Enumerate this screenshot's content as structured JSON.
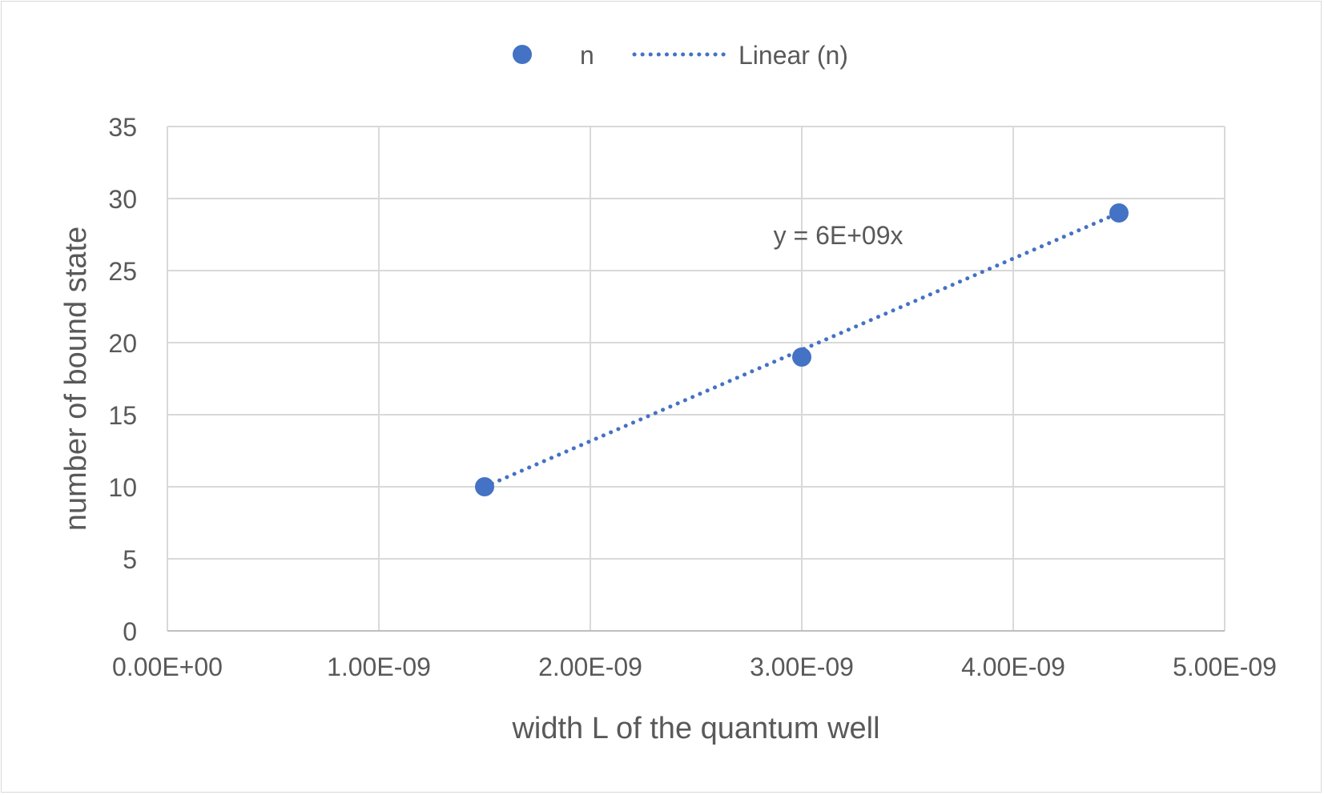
{
  "chart_data": {
    "type": "scatter",
    "xlabel": "width L of the quantum well",
    "ylabel": "number of bound state",
    "xlim": [
      0,
      5e-09
    ],
    "ylim": [
      0,
      35
    ],
    "x_ticks": [
      0,
      1e-09,
      2e-09,
      3e-09,
      4e-09,
      5e-09
    ],
    "x_tick_labels": [
      "0.00E+00",
      "1.00E-09",
      "2.00E-09",
      "3.00E-09",
      "4.00E-09",
      "5.00E-09"
    ],
    "y_ticks": [
      0,
      5,
      10,
      15,
      20,
      25,
      30,
      35
    ],
    "y_tick_labels": [
      "0",
      "5",
      "10",
      "15",
      "20",
      "25",
      "30",
      "35"
    ],
    "grid": true,
    "legend_position": "top",
    "series": [
      {
        "name": "n",
        "x": [
          1.5e-09,
          3e-09,
          4.5e-09
        ],
        "y": [
          10,
          19,
          29
        ],
        "color": "#4472C4",
        "marker": "circle"
      }
    ],
    "trendline": {
      "name": "Linear (n)",
      "type": "linear",
      "x_range": [
        1.5e-09,
        4.5e-09
      ],
      "y_range": [
        10,
        29
      ],
      "style": "dotted",
      "color": "#4472C4",
      "equation": "y = 6E+09x",
      "equation_anchor": [
        3.15e-09,
        27.5
      ]
    }
  }
}
